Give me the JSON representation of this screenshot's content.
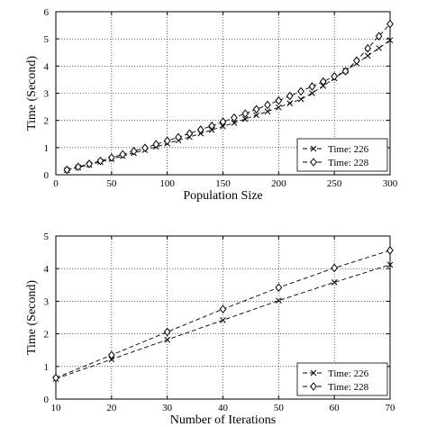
{
  "colors": {
    "background": "#ffffff",
    "ink": "#000000",
    "grid": "#000000"
  },
  "chart_data": [
    {
      "type": "line",
      "title": "",
      "xlabel": "Population Size",
      "ylabel": "Time (Second)",
      "xlim": [
        0,
        300
      ],
      "ylim": [
        0,
        6
      ],
      "xticks": [
        0,
        50,
        100,
        150,
        200,
        250,
        300
      ],
      "yticks": [
        0,
        1,
        2,
        3,
        4,
        5,
        6
      ],
      "grid": "dotted",
      "legend_position": "bottom-right",
      "x": [
        10,
        20,
        30,
        40,
        50,
        60,
        70,
        80,
        90,
        100,
        110,
        120,
        130,
        140,
        150,
        160,
        170,
        180,
        190,
        200,
        210,
        220,
        230,
        240,
        250,
        260,
        270,
        280,
        290,
        300
      ],
      "series": [
        {
          "name": "Time: 226",
          "marker": "x",
          "line_style": "dashed",
          "values": [
            0.17,
            0.27,
            0.37,
            0.47,
            0.58,
            0.69,
            0.8,
            0.91,
            1.03,
            1.15,
            1.27,
            1.39,
            1.52,
            1.65,
            1.78,
            1.91,
            2.05,
            2.19,
            2.33,
            2.48,
            2.63,
            2.78,
            3.0,
            3.27,
            3.55,
            3.83,
            4.1,
            4.38,
            4.66,
            4.95
          ]
        },
        {
          "name": "Time: 228",
          "marker": "diamond",
          "line_style": "dashed",
          "values": [
            0.18,
            0.29,
            0.4,
            0.51,
            0.63,
            0.75,
            0.87,
            0.99,
            1.12,
            1.25,
            1.38,
            1.52,
            1.66,
            1.8,
            1.95,
            2.1,
            2.25,
            2.41,
            2.57,
            2.73,
            2.9,
            3.07,
            3.25,
            3.43,
            3.62,
            3.81,
            4.2,
            4.65,
            5.1,
            5.55
          ]
        }
      ]
    },
    {
      "type": "line",
      "title": "",
      "xlabel": "Number of Iterations",
      "ylabel": "Time (Second)",
      "xlim": [
        10,
        70
      ],
      "ylim": [
        0,
        5
      ],
      "xticks": [
        10,
        20,
        30,
        40,
        50,
        60,
        70
      ],
      "yticks": [
        0,
        1,
        2,
        3,
        4,
        5
      ],
      "grid": "dotted",
      "legend_position": "bottom-right",
      "x": [
        10,
        20,
        30,
        40,
        50,
        60,
        70
      ],
      "series": [
        {
          "name": "Time: 226",
          "marker": "x",
          "line_style": "dashed",
          "values": [
            0.62,
            1.22,
            1.82,
            2.42,
            3.02,
            3.58,
            4.12
          ]
        },
        {
          "name": "Time: 228",
          "marker": "diamond",
          "line_style": "dashed",
          "values": [
            0.65,
            1.35,
            2.06,
            2.76,
            3.42,
            4.02,
            4.56
          ]
        }
      ]
    }
  ]
}
